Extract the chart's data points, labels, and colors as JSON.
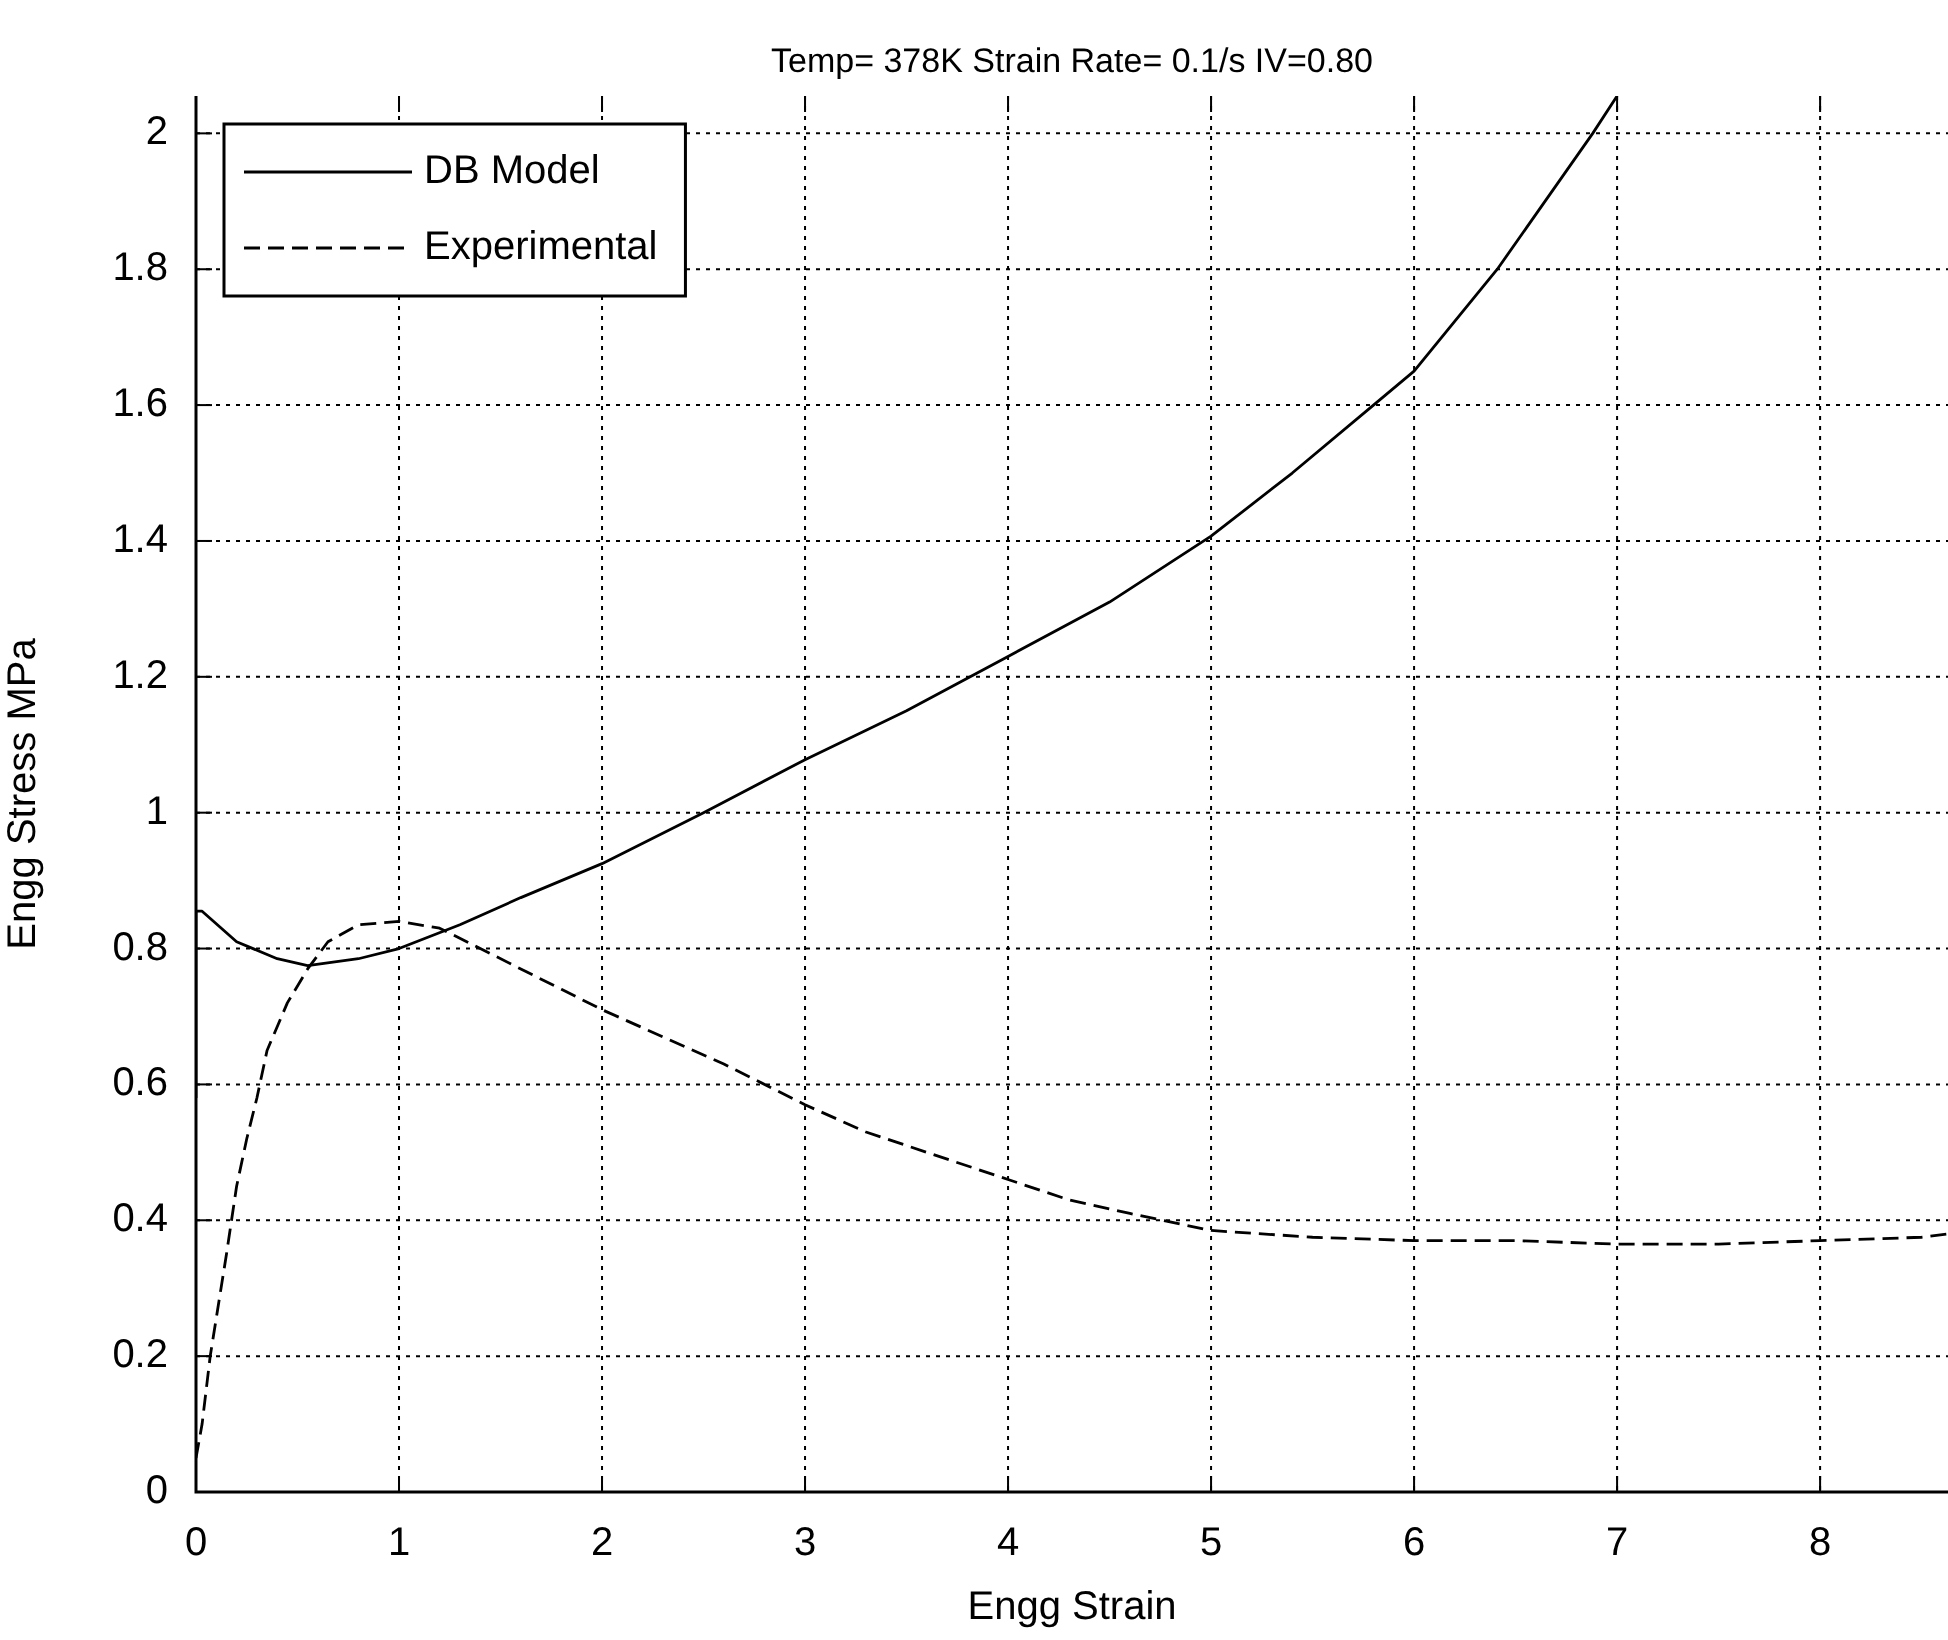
{
  "chart_data": {
    "type": "line",
    "title": "Temp= 378K Strain Rate= 0.1/s IV=0.80",
    "xlabel": "Engg Strain",
    "ylabel": "Engg Stress MPa",
    "xlim": [
      0,
      8.63
    ],
    "xticks": [
      0,
      1,
      2,
      3,
      4,
      5,
      6,
      7,
      8
    ],
    "ylim": [
      0,
      2.055
    ],
    "yticks": [
      0,
      0.2,
      0.4,
      0.6,
      0.8,
      1,
      1.2,
      1.4,
      1.6,
      1.8,
      2
    ],
    "grid": true,
    "legend": "top left",
    "marker": "none",
    "series": [
      {
        "name": "DB Model",
        "color": "#000000",
        "line_style": "solid",
        "x": [
          0,
          0,
          0.03,
          0.2,
          0.4,
          0.55,
          0.8,
          1,
          1.3,
          1.6,
          2,
          2.5,
          3,
          3.5,
          4,
          4.5,
          5,
          5.4,
          5.8,
          6,
          6.41,
          6.88,
          7
        ],
        "values": [
          0.58,
          0.855,
          0.855,
          0.81,
          0.785,
          0.775,
          0.785,
          0.8,
          0.835,
          0.875,
          0.925,
          1,
          1.078,
          1.15,
          1.23,
          1.31,
          1.407,
          1.5,
          1.6,
          1.65,
          1.8,
          2,
          2.055
        ]
      },
      {
        "name": "Experimental",
        "color": "#000000",
        "line_style": "dashed",
        "x": [
          0,
          0.03,
          0.07,
          0.15,
          0.2,
          0.25,
          0.3,
          0.35,
          0.45,
          0.55,
          0.65,
          0.8,
          1,
          1.2,
          1.4,
          1.6,
          1.8,
          2,
          2.3,
          2.6,
          3,
          3.3,
          3.6,
          4,
          4.3,
          4.6,
          5,
          5.5,
          6,
          6.5,
          7,
          7.5,
          8,
          8.5,
          8.63
        ],
        "values": [
          0.05,
          0.1,
          0.2,
          0.35,
          0.45,
          0.52,
          0.58,
          0.65,
          0.72,
          0.77,
          0.81,
          0.835,
          0.84,
          0.83,
          0.8,
          0.77,
          0.74,
          0.71,
          0.67,
          0.63,
          0.57,
          0.53,
          0.5,
          0.46,
          0.43,
          0.41,
          0.385,
          0.375,
          0.37,
          0.37,
          0.365,
          0.365,
          0.37,
          0.375,
          0.38
        ]
      }
    ]
  }
}
